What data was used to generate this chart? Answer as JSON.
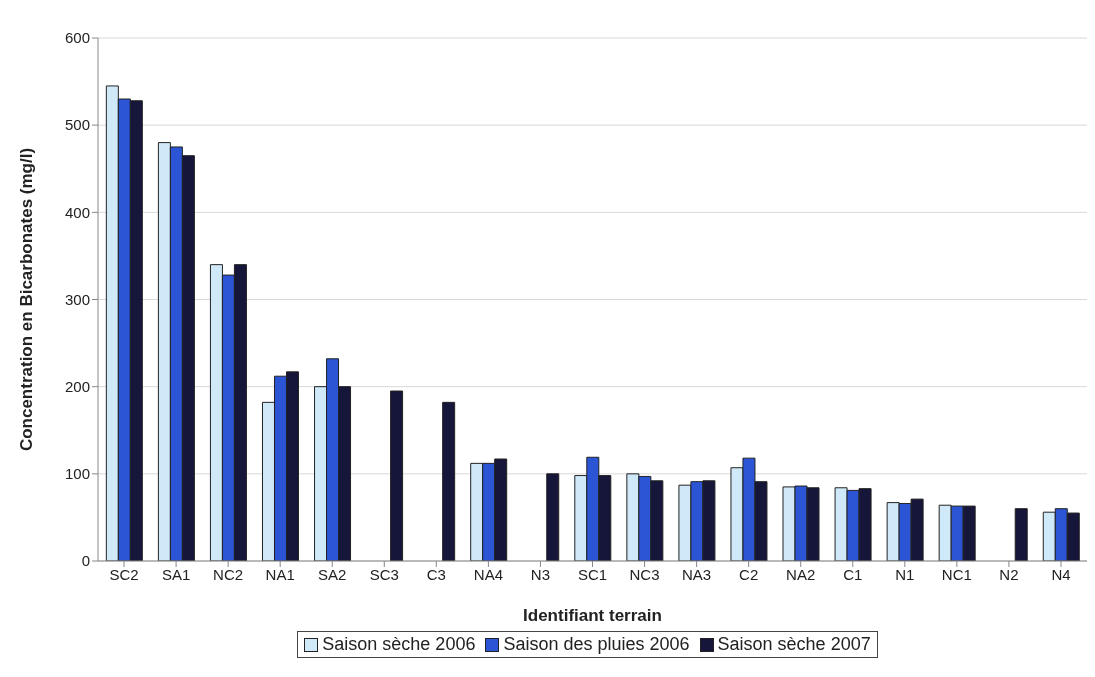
{
  "chart_data": {
    "type": "bar",
    "xlabel": "Identifiant terrain",
    "ylabel": "Concentration en Bicarbonates (mg/l)",
    "categories": [
      "SC2",
      "SA1",
      "NC2",
      "NA1",
      "SA2",
      "SC3",
      "C3",
      "NA4",
      "N3",
      "SC1",
      "NC3",
      "NA3",
      "C2",
      "NA2",
      "C1",
      "N1",
      "NC1",
      "N2",
      "N4"
    ],
    "series": [
      {
        "name": "Saison sèche 2006",
        "color": "#cfe9f9",
        "values": [
          545,
          480,
          340,
          182,
          200,
          null,
          null,
          112,
          null,
          98,
          100,
          87,
          107,
          85,
          84,
          67,
          64,
          null,
          56
        ]
      },
      {
        "name": "Saison des pluies 2006",
        "color": "#2b55d4",
        "values": [
          530,
          475,
          328,
          212,
          232,
          null,
          null,
          112,
          null,
          119,
          97,
          91,
          118,
          86,
          81,
          66,
          63,
          null,
          60
        ]
      },
      {
        "name": "Saison sèche 2007",
        "color": "#16163a",
        "values": [
          528,
          465,
          340,
          217,
          200,
          195,
          182,
          117,
          100,
          98,
          92,
          92,
          91,
          84,
          83,
          71,
          63,
          60,
          55
        ]
      }
    ],
    "ylim": [
      0,
      600
    ],
    "yticks": [
      0,
      100,
      200,
      300,
      400,
      500,
      600
    ],
    "grid": "y",
    "legend": "bottom"
  }
}
